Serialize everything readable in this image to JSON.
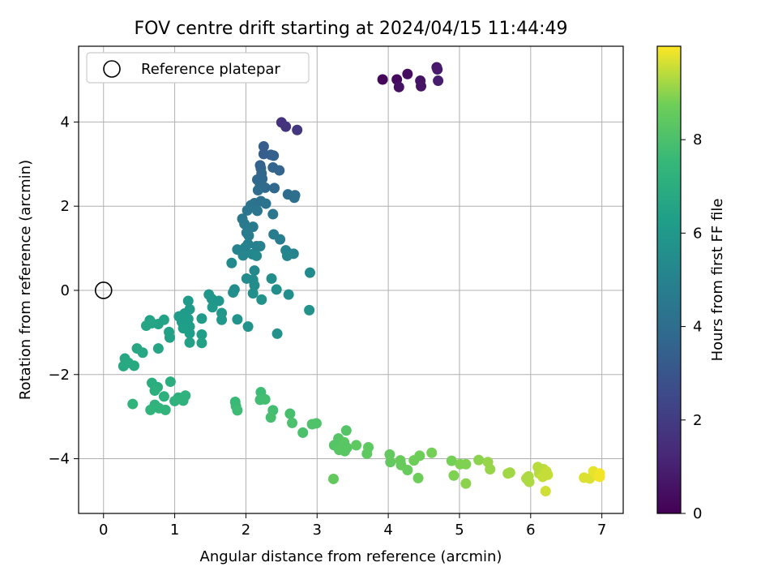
{
  "chart_data": {
    "type": "scatter",
    "title": "FOV centre drift starting at 2024/04/15 11:44:49",
    "xlabel": "Angular distance from reference (arcmin)",
    "ylabel": "Rotation from reference (arcmin)",
    "xlim": [
      -0.35,
      7.3
    ],
    "ylim": [
      -5.3,
      5.8
    ],
    "xticks": [
      0,
      1,
      2,
      3,
      4,
      5,
      6,
      7
    ],
    "yticks": [
      -4,
      -2,
      0,
      2,
      4
    ],
    "grid": true,
    "legend": {
      "position": "top-left",
      "entries": [
        "Reference platepar"
      ]
    },
    "colorbar": {
      "label": "Hours from first FF file",
      "range": [
        0,
        10
      ],
      "ticks": [
        0,
        2,
        4,
        6,
        8
      ],
      "colormap": "viridis"
    },
    "reference_point": {
      "x": 0,
      "y": 0,
      "label": "Reference platepar"
    },
    "series": [
      {
        "values": [
          {
            "x": 3.92,
            "y": 5.01,
            "h": 0.2
          },
          {
            "x": 4.12,
            "y": 5.01,
            "h": 0.3
          },
          {
            "x": 4.27,
            "y": 5.14,
            "h": 0.4
          },
          {
            "x": 4.15,
            "y": 4.83,
            "h": 0.5
          },
          {
            "x": 4.45,
            "y": 4.98,
            "h": 0.6
          },
          {
            "x": 4.46,
            "y": 4.85,
            "h": 0.6
          },
          {
            "x": 4.68,
            "y": 5.3,
            "h": 0.7
          },
          {
            "x": 4.69,
            "y": 5.25,
            "h": 0.8
          },
          {
            "x": 4.7,
            "y": 4.98,
            "h": 0.9
          },
          {
            "x": 2.5,
            "y": 3.99,
            "h": 1.6
          },
          {
            "x": 2.56,
            "y": 3.89,
            "h": 1.7
          },
          {
            "x": 2.72,
            "y": 3.81,
            "h": 1.8
          },
          {
            "x": 2.25,
            "y": 3.42,
            "h": 3.3
          },
          {
            "x": 2.25,
            "y": 3.24,
            "h": 3.3
          },
          {
            "x": 2.35,
            "y": 3.22,
            "h": 3.4
          },
          {
            "x": 2.39,
            "y": 3.2,
            "h": 3.5
          },
          {
            "x": 2.2,
            "y": 2.97,
            "h": 3.5
          },
          {
            "x": 2.21,
            "y": 2.9,
            "h": 3.6
          },
          {
            "x": 2.38,
            "y": 2.92,
            "h": 3.6
          },
          {
            "x": 2.47,
            "y": 2.85,
            "h": 3.6
          },
          {
            "x": 2.22,
            "y": 2.78,
            "h": 3.7
          },
          {
            "x": 2.16,
            "y": 2.63,
            "h": 3.7
          },
          {
            "x": 2.23,
            "y": 2.65,
            "h": 3.8
          },
          {
            "x": 2.4,
            "y": 2.43,
            "h": 3.8
          },
          {
            "x": 2.2,
            "y": 2.49,
            "h": 3.9
          },
          {
            "x": 2.27,
            "y": 2.44,
            "h": 3.9
          },
          {
            "x": 2.17,
            "y": 2.38,
            "h": 4.0
          },
          {
            "x": 2.59,
            "y": 2.28,
            "h": 4.0
          },
          {
            "x": 2.69,
            "y": 2.26,
            "h": 4.1
          },
          {
            "x": 2.68,
            "y": 2.2,
            "h": 4.1
          },
          {
            "x": 2.12,
            "y": 2.07,
            "h": 4.2
          },
          {
            "x": 2.21,
            "y": 2.12,
            "h": 4.2
          },
          {
            "x": 2.28,
            "y": 2.06,
            "h": 4.3
          },
          {
            "x": 2.07,
            "y": 2.02,
            "h": 4.3
          },
          {
            "x": 2.02,
            "y": 1.9,
            "h": 4.4
          },
          {
            "x": 2.16,
            "y": 1.89,
            "h": 4.4
          },
          {
            "x": 2.38,
            "y": 1.81,
            "h": 4.5
          },
          {
            "x": 1.95,
            "y": 1.7,
            "h": 4.5
          },
          {
            "x": 1.98,
            "y": 1.58,
            "h": 4.6
          },
          {
            "x": 2.1,
            "y": 1.51,
            "h": 4.6
          },
          {
            "x": 2.01,
            "y": 1.37,
            "h": 4.7
          },
          {
            "x": 2.04,
            "y": 1.3,
            "h": 4.7
          },
          {
            "x": 2.39,
            "y": 1.33,
            "h": 4.8
          },
          {
            "x": 2.48,
            "y": 1.21,
            "h": 4.8
          },
          {
            "x": 2.03,
            "y": 1.1,
            "h": 4.9
          },
          {
            "x": 2.15,
            "y": 1.05,
            "h": 4.9
          },
          {
            "x": 2.2,
            "y": 1.05,
            "h": 5.0
          },
          {
            "x": 1.99,
            "y": 1.02,
            "h": 5.0
          },
          {
            "x": 1.88,
            "y": 0.97,
            "h": 5.0
          },
          {
            "x": 2.56,
            "y": 0.95,
            "h": 5.1
          },
          {
            "x": 2.6,
            "y": 0.88,
            "h": 5.1
          },
          {
            "x": 2.67,
            "y": 0.87,
            "h": 5.1
          },
          {
            "x": 2.58,
            "y": 0.82,
            "h": 5.2
          },
          {
            "x": 1.96,
            "y": 0.83,
            "h": 5.2
          },
          {
            "x": 2.09,
            "y": 0.86,
            "h": 5.2
          },
          {
            "x": 2.15,
            "y": 0.82,
            "h": 5.3
          },
          {
            "x": 1.8,
            "y": 0.65,
            "h": 5.3
          },
          {
            "x": 2.12,
            "y": 0.47,
            "h": 5.3
          },
          {
            "x": 2.9,
            "y": 0.42,
            "h": 5.4
          },
          {
            "x": 2.01,
            "y": 0.28,
            "h": 5.4
          },
          {
            "x": 2.1,
            "y": 0.25,
            "h": 5.4
          },
          {
            "x": 2.36,
            "y": 0.28,
            "h": 5.5
          },
          {
            "x": 2.12,
            "y": 0.12,
            "h": 5.5
          },
          {
            "x": 1.84,
            "y": 0.02,
            "h": 5.5
          },
          {
            "x": 2.43,
            "y": 0.02,
            "h": 5.6
          },
          {
            "x": 2.6,
            "y": -0.1,
            "h": 5.6
          },
          {
            "x": 1.82,
            "y": -0.05,
            "h": 5.6
          },
          {
            "x": 2.1,
            "y": -0.07,
            "h": 5.6
          },
          {
            "x": 2.22,
            "y": -0.22,
            "h": 5.7
          },
          {
            "x": 2.89,
            "y": -0.47,
            "h": 5.7
          },
          {
            "x": 2.44,
            "y": -1.03,
            "h": 5.7
          },
          {
            "x": 1.88,
            "y": -0.69,
            "h": 5.8
          },
          {
            "x": 2.03,
            "y": -0.86,
            "h": 5.8
          },
          {
            "x": 1.48,
            "y": -0.1,
            "h": 5.9
          },
          {
            "x": 1.52,
            "y": -0.2,
            "h": 5.9
          },
          {
            "x": 1.62,
            "y": -0.25,
            "h": 5.9
          },
          {
            "x": 1.53,
            "y": -0.4,
            "h": 6.0
          },
          {
            "x": 1.66,
            "y": -0.54,
            "h": 6.0
          },
          {
            "x": 1.66,
            "y": -0.7,
            "h": 6.0
          },
          {
            "x": 1.38,
            "y": -0.67,
            "h": 6.1
          },
          {
            "x": 1.19,
            "y": -0.25,
            "h": 6.1
          },
          {
            "x": 1.21,
            "y": -0.45,
            "h": 6.1
          },
          {
            "x": 1.14,
            "y": -0.55,
            "h": 6.1
          },
          {
            "x": 1.06,
            "y": -0.62,
            "h": 6.2
          },
          {
            "x": 1.19,
            "y": -0.68,
            "h": 6.2
          },
          {
            "x": 1.1,
            "y": -0.75,
            "h": 6.2
          },
          {
            "x": 1.21,
            "y": -0.86,
            "h": 6.2
          },
          {
            "x": 1.12,
            "y": -0.9,
            "h": 6.3
          },
          {
            "x": 1.21,
            "y": -1.02,
            "h": 6.3
          },
          {
            "x": 1.38,
            "y": -1.05,
            "h": 6.3
          },
          {
            "x": 1.21,
            "y": -1.24,
            "h": 6.4
          },
          {
            "x": 1.38,
            "y": -1.25,
            "h": 6.4
          },
          {
            "x": 0.92,
            "y": -0.99,
            "h": 6.4
          },
          {
            "x": 0.93,
            "y": -1.12,
            "h": 6.4
          },
          {
            "x": 0.85,
            "y": -0.7,
            "h": 6.5
          },
          {
            "x": 0.77,
            "y": -0.8,
            "h": 6.5
          },
          {
            "x": 0.65,
            "y": -0.71,
            "h": 6.5
          },
          {
            "x": 0.6,
            "y": -0.84,
            "h": 6.6
          },
          {
            "x": 0.68,
            "y": -0.78,
            "h": 6.6
          },
          {
            "x": 0.77,
            "y": -1.38,
            "h": 6.6
          },
          {
            "x": 0.47,
            "y": -1.38,
            "h": 6.7
          },
          {
            "x": 0.55,
            "y": -1.48,
            "h": 6.7
          },
          {
            "x": 0.3,
            "y": -1.62,
            "h": 6.7
          },
          {
            "x": 0.35,
            "y": -1.72,
            "h": 6.8
          },
          {
            "x": 0.43,
            "y": -1.79,
            "h": 6.8
          },
          {
            "x": 0.28,
            "y": -1.8,
            "h": 6.8
          },
          {
            "x": 0.68,
            "y": -2.2,
            "h": 7.0
          },
          {
            "x": 0.76,
            "y": -2.3,
            "h": 7.0
          },
          {
            "x": 0.94,
            "y": -2.17,
            "h": 7.0
          },
          {
            "x": 0.72,
            "y": -2.38,
            "h": 7.1
          },
          {
            "x": 0.85,
            "y": -2.52,
            "h": 7.1
          },
          {
            "x": 1.05,
            "y": -2.55,
            "h": 7.1
          },
          {
            "x": 1.15,
            "y": -2.5,
            "h": 7.2
          },
          {
            "x": 1.12,
            "y": -2.62,
            "h": 7.2
          },
          {
            "x": 1.0,
            "y": -2.63,
            "h": 7.2
          },
          {
            "x": 0.72,
            "y": -2.72,
            "h": 7.2
          },
          {
            "x": 0.78,
            "y": -2.8,
            "h": 7.3
          },
          {
            "x": 0.66,
            "y": -2.84,
            "h": 7.3
          },
          {
            "x": 0.87,
            "y": -2.84,
            "h": 7.3
          },
          {
            "x": 0.41,
            "y": -2.7,
            "h": 7.3
          },
          {
            "x": 1.85,
            "y": -2.65,
            "h": 7.6
          },
          {
            "x": 1.86,
            "y": -2.75,
            "h": 7.6
          },
          {
            "x": 1.88,
            "y": -2.85,
            "h": 7.7
          },
          {
            "x": 2.21,
            "y": -2.42,
            "h": 7.7
          },
          {
            "x": 2.2,
            "y": -2.6,
            "h": 7.8
          },
          {
            "x": 2.27,
            "y": -2.59,
            "h": 7.8
          },
          {
            "x": 2.38,
            "y": -2.85,
            "h": 7.8
          },
          {
            "x": 2.35,
            "y": -3.02,
            "h": 7.9
          },
          {
            "x": 2.62,
            "y": -2.93,
            "h": 7.9
          },
          {
            "x": 2.65,
            "y": -3.15,
            "h": 8.0
          },
          {
            "x": 2.8,
            "y": -3.38,
            "h": 8.0
          },
          {
            "x": 2.93,
            "y": -3.18,
            "h": 8.1
          },
          {
            "x": 2.99,
            "y": -3.16,
            "h": 8.1
          },
          {
            "x": 3.41,
            "y": -3.33,
            "h": 8.2
          },
          {
            "x": 3.24,
            "y": -3.68,
            "h": 8.2
          },
          {
            "x": 3.3,
            "y": -3.52,
            "h": 8.2
          },
          {
            "x": 3.38,
            "y": -3.61,
            "h": 8.3
          },
          {
            "x": 3.31,
            "y": -3.79,
            "h": 8.3
          },
          {
            "x": 3.42,
            "y": -3.74,
            "h": 8.3
          },
          {
            "x": 3.39,
            "y": -3.82,
            "h": 8.3
          },
          {
            "x": 3.55,
            "y": -3.68,
            "h": 8.4
          },
          {
            "x": 3.72,
            "y": -3.73,
            "h": 8.4
          },
          {
            "x": 3.7,
            "y": -3.88,
            "h": 8.4
          },
          {
            "x": 3.23,
            "y": -4.48,
            "h": 8.5
          },
          {
            "x": 4.02,
            "y": -3.9,
            "h": 8.5
          },
          {
            "x": 4.03,
            "y": -4.08,
            "h": 8.5
          },
          {
            "x": 4.17,
            "y": -4.04,
            "h": 8.6
          },
          {
            "x": 4.18,
            "y": -4.15,
            "h": 8.6
          },
          {
            "x": 4.27,
            "y": -4.27,
            "h": 8.6
          },
          {
            "x": 4.36,
            "y": -4.04,
            "h": 8.7
          },
          {
            "x": 4.44,
            "y": -3.93,
            "h": 8.7
          },
          {
            "x": 4.42,
            "y": -4.46,
            "h": 8.7
          },
          {
            "x": 4.61,
            "y": -3.86,
            "h": 8.8
          },
          {
            "x": 4.89,
            "y": -4.05,
            "h": 8.8
          },
          {
            "x": 4.92,
            "y": -4.4,
            "h": 8.9
          },
          {
            "x": 5.01,
            "y": -4.13,
            "h": 8.9
          },
          {
            "x": 5.09,
            "y": -4.13,
            "h": 8.9
          },
          {
            "x": 5.09,
            "y": -4.59,
            "h": 9.0
          },
          {
            "x": 5.27,
            "y": -4.03,
            "h": 9.0
          },
          {
            "x": 5.4,
            "y": -4.08,
            "h": 9.1
          },
          {
            "x": 5.43,
            "y": -4.25,
            "h": 9.1
          },
          {
            "x": 5.68,
            "y": -4.35,
            "h": 9.2
          },
          {
            "x": 5.71,
            "y": -4.33,
            "h": 9.2
          },
          {
            "x": 5.94,
            "y": -4.47,
            "h": 9.3
          },
          {
            "x": 5.98,
            "y": -4.55,
            "h": 9.3
          },
          {
            "x": 5.97,
            "y": -4.42,
            "h": 9.3
          },
          {
            "x": 6.1,
            "y": -4.2,
            "h": 9.4
          },
          {
            "x": 6.12,
            "y": -4.35,
            "h": 9.4
          },
          {
            "x": 6.18,
            "y": -4.25,
            "h": 9.4
          },
          {
            "x": 6.22,
            "y": -4.3,
            "h": 9.5
          },
          {
            "x": 6.17,
            "y": -4.43,
            "h": 9.5
          },
          {
            "x": 6.24,
            "y": -4.38,
            "h": 9.5
          },
          {
            "x": 6.21,
            "y": -4.77,
            "h": 9.6
          },
          {
            "x": 6.75,
            "y": -4.45,
            "h": 9.7
          },
          {
            "x": 6.83,
            "y": -4.47,
            "h": 9.7
          },
          {
            "x": 6.88,
            "y": -4.3,
            "h": 9.8
          },
          {
            "x": 6.93,
            "y": -4.4,
            "h": 9.8
          },
          {
            "x": 6.97,
            "y": -4.43,
            "h": 9.9
          },
          {
            "x": 6.97,
            "y": -4.35,
            "h": 9.9
          }
        ]
      }
    ]
  }
}
